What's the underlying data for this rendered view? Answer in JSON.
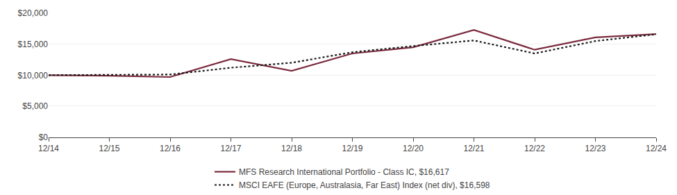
{
  "chart_data": {
    "type": "line",
    "categories": [
      "12/14",
      "12/15",
      "12/16",
      "12/17",
      "12/18",
      "12/19",
      "12/20",
      "12/21",
      "12/22",
      "12/23",
      "12/24"
    ],
    "series": [
      {
        "name": "MFS Research International Portfolio - Class IC, $16,617",
        "color": "#7B2A3E",
        "line_style": "solid",
        "values": [
          10000,
          9900,
          9700,
          12600,
          10700,
          13500,
          14500,
          17300,
          14100,
          16100,
          16617
        ]
      },
      {
        "name": "MSCI EAFE (Europe, Australasia, Far East) Index (net div), $16,598",
        "color": "#1a1a1a",
        "line_style": "dotted",
        "values": [
          10000,
          10050,
          10100,
          11200,
          12000,
          13700,
          14700,
          15600,
          13500,
          15500,
          16598
        ]
      }
    ],
    "ylim": [
      0,
      20000
    ],
    "yticks": [
      {
        "value": 0,
        "label": "$0"
      },
      {
        "value": 5000,
        "label": "$5,000"
      },
      {
        "value": 10000,
        "label": "$10,000"
      },
      {
        "value": 15000,
        "label": "$15,000"
      },
      {
        "value": 20000,
        "label": "$20,000"
      }
    ],
    "grid": true,
    "legend": "bottom"
  }
}
